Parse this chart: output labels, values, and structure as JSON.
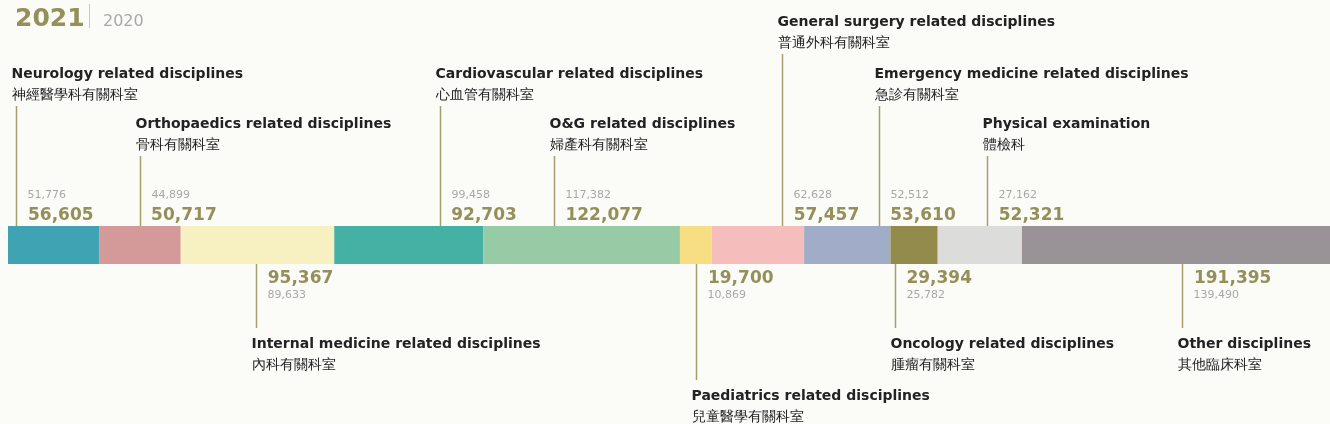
{
  "chart_data": {
    "type": "bar",
    "title": "2021",
    "subtitle": "2020",
    "orientation": "horizontal",
    "stacked": true,
    "categories": [
      null
    ],
    "series": [
      {
        "name": "Neurology related disciplines\n神經醫學科有關科室",
        "color": "#3fa3b4",
        "values": [
          56605
        ],
        "value_labels": [
          "56,605"
        ]
      },
      {
        "name": "Orthopaedics related disciplines\n骨科有關科室",
        "color": "#d49a9a",
        "values": [
          50717
        ],
        "value_labels": [
          "50,717"
        ]
      },
      {
        "name": "Internal medicine related disciplines\n內科有關科室",
        "color": "#f7f1c2",
        "values": [
          95367
        ],
        "value_labels": [
          "95,367"
        ]
      },
      {
        "name": "Cardiovascular related disciplines\n心血管有關科室",
        "color": "#45b1a5",
        "values": [
          92703
        ],
        "value_labels": [
          "92,703"
        ]
      },
      {
        "name": "O&G related disciplines\n婦產科有關科室",
        "color": "#97cba5",
        "values": [
          122077
        ],
        "value_labels": [
          "122,077"
        ]
      },
      {
        "name": "Paediatrics related disciplines\n兒童醫學有關科室",
        "color": "#f8de82",
        "values": [
          19700
        ],
        "value_labels": [
          "19,700"
        ]
      },
      {
        "name": "General surgery related disciplines\n普通外科有關科室",
        "color": "#f6bdbd",
        "values": [
          57457
        ],
        "value_labels": [
          "57,457"
        ]
      },
      {
        "name": "Emergency medicine related disciplines\n急診有關科室",
        "color": "#a1acc8",
        "values": [
          53610
        ],
        "value_labels": [
          "53,610"
        ]
      },
      {
        "name": "Oncology related disciplines\n腫瘤有關科室",
        "color": "#928b4b",
        "values": [
          29394
        ],
        "value_labels": [
          "29,394"
        ]
      },
      {
        "name": "Physical examination\n體檢科",
        "color": "#dcdddb",
        "values": [
          52321
        ],
        "value_labels": [
          "52,321"
        ]
      },
      {
        "name": "Other disciplines\n其他臨床科室",
        "color": "#999398",
        "values": [
          191395
        ],
        "value_labels": [
          "191,395"
        ]
      }
    ],
    "annotations": [
      "51,776",
      "44,899",
      "89,633",
      "99,458",
      "117,382",
      "10,869",
      "62,628",
      "52,512",
      "25,782",
      "27,162",
      "139,490"
    ]
  }
}
